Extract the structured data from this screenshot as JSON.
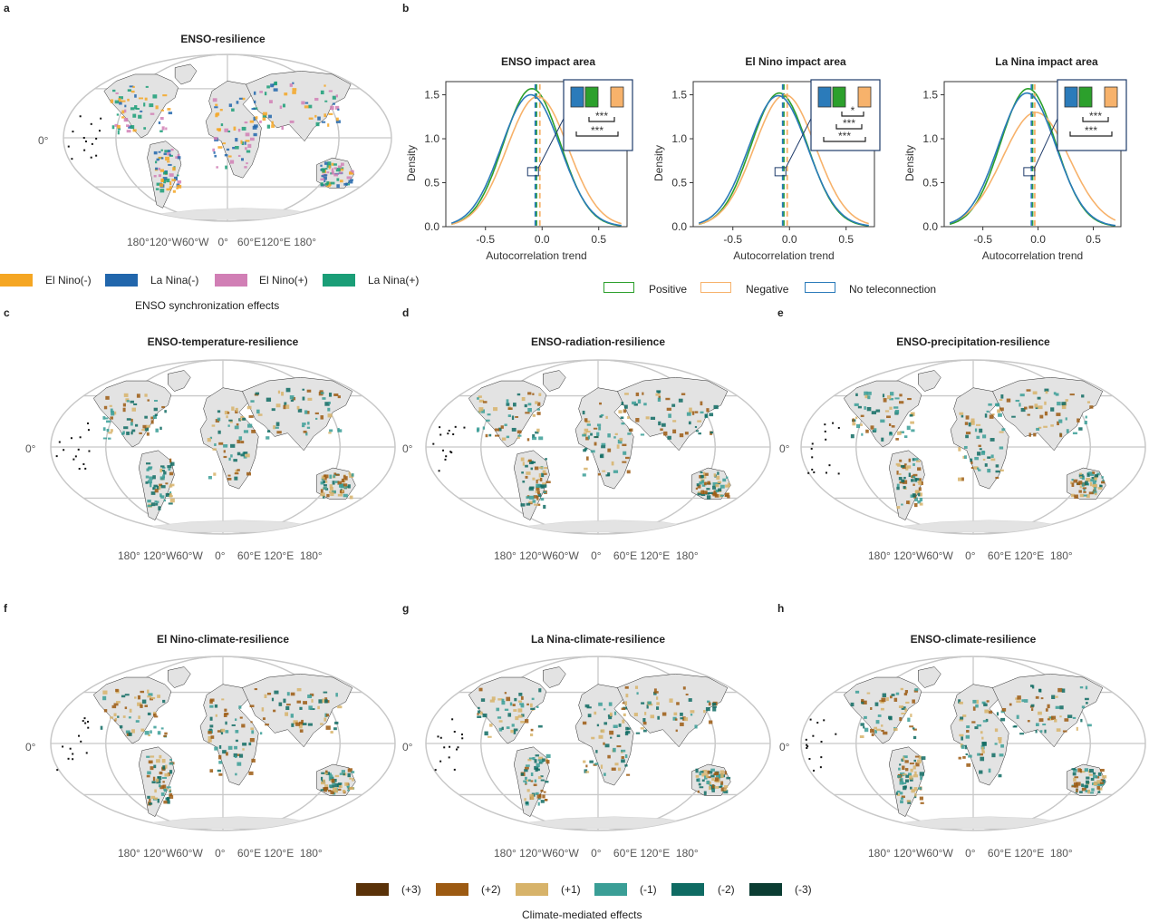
{
  "panels": {
    "a": {
      "letter": "a",
      "title": "ENSO-resilience"
    },
    "b": {
      "letter": "b"
    },
    "c": {
      "letter": "c",
      "title": "ENSO-temperature-resilience"
    },
    "d": {
      "letter": "d",
      "title": "ENSO-radiation-resilience"
    },
    "e": {
      "letter": "e",
      "title": "ENSO-precipitation-resilience"
    },
    "f": {
      "letter": "f",
      "title": "El Nino-climate-resilience"
    },
    "g": {
      "letter": "g",
      "title": "La Nina-climate-resilience"
    },
    "h": {
      "letter": "h",
      "title": "ENSO-climate-resilience"
    }
  },
  "map_axes": {
    "lat_label": "0°",
    "lon_label_a": "180°120°W60°W   0°   60°E120°E 180°",
    "lon_label": "180° 120°W60°W    0°    60°E 120°E  180°"
  },
  "sync_legend": {
    "caption": "ENSO synchronization effects",
    "items": [
      {
        "label": "El Nino(-)",
        "color": "#f5a623"
      },
      {
        "label": "La Nina(-)",
        "color": "#2166ac"
      },
      {
        "label": "El Nino(+)",
        "color": "#d17fb5"
      },
      {
        "label": "La Nina(+)",
        "color": "#1a9e77"
      }
    ]
  },
  "density_legend": {
    "items": [
      {
        "label": "Positive",
        "color": "#2ca02c"
      },
      {
        "label": "Negative",
        "color": "#f7b26b"
      },
      {
        "label": "No teleconnection",
        "color": "#2b7bba"
      }
    ]
  },
  "climate_legend": {
    "caption": "Climate-mediated effects",
    "items": [
      {
        "label": "(+3)",
        "color": "#5a3209"
      },
      {
        "label": "(+2)",
        "color": "#9c5a12"
      },
      {
        "label": "(+1)",
        "color": "#d7b36a"
      },
      {
        "label": "(-1)",
        "color": "#3a9e96"
      },
      {
        "label": "(-2)",
        "color": "#0f6b63"
      },
      {
        "label": "(-3)",
        "color": "#0b3d33"
      }
    ]
  },
  "chart_data": [
    {
      "type": "line",
      "title": "ENSO impact area",
      "xlabel": "Autocorrelation trend",
      "ylabel": "Density",
      "xlim": [
        -0.85,
        0.75
      ],
      "ylim": [
        0,
        1.65
      ],
      "xticks": [
        "-0.5",
        "0.0",
        "0.5"
      ],
      "yticks": [
        "0.0",
        "0.5",
        "1.0",
        "1.5"
      ],
      "series": [
        {
          "name": "Positive",
          "mean": -0.09,
          "peak": 1.57,
          "sd": 0.25,
          "vline": -0.05
        },
        {
          "name": "Negative",
          "mean": -0.04,
          "peak": 1.48,
          "sd": 0.27,
          "vline": -0.02
        },
        {
          "name": "No teleconnection",
          "mean": -0.1,
          "peak": 1.5,
          "sd": 0.26,
          "vline": -0.06
        }
      ],
      "inset": {
        "bars": [
          "No teleconnection",
          "Positive",
          "Negative"
        ],
        "sig1": "***",
        "sig2": "***"
      }
    },
    {
      "type": "line",
      "title": "El Nino impact area",
      "xlabel": "Autocorrelation trend",
      "ylabel": "Density",
      "xlim": [
        -0.85,
        0.75
      ],
      "ylim": [
        0,
        1.65
      ],
      "xticks": [
        "-0.5",
        "0.0",
        "0.5"
      ],
      "yticks": [
        "0.0",
        "0.5",
        "1.0",
        "1.5"
      ],
      "series": [
        {
          "name": "Positive",
          "mean": -0.09,
          "peak": 1.52,
          "sd": 0.25,
          "vline": -0.05
        },
        {
          "name": "Negative",
          "mean": -0.04,
          "peak": 1.5,
          "sd": 0.27,
          "vline": -0.02
        },
        {
          "name": "No teleconnection",
          "mean": -0.1,
          "peak": 1.49,
          "sd": 0.26,
          "vline": -0.06
        }
      ],
      "inset": {
        "bars": [
          "No teleconnection",
          "Positive",
          "Negative"
        ],
        "sig0": "*",
        "sig1": "***",
        "sig2": "***"
      }
    },
    {
      "type": "line",
      "title": "La Nina impact area",
      "xlabel": "Autocorrelation trend",
      "ylabel": "Density",
      "xlim": [
        -0.85,
        0.75
      ],
      "ylim": [
        0,
        1.65
      ],
      "xticks": [
        "-0.5",
        "0.0",
        "0.5"
      ],
      "yticks": [
        "0.0",
        "0.5",
        "1.0",
        "1.5"
      ],
      "series": [
        {
          "name": "Positive",
          "mean": -0.09,
          "peak": 1.57,
          "sd": 0.25,
          "vline": -0.05
        },
        {
          "name": "Negative",
          "mean": -0.02,
          "peak": 1.3,
          "sd": 0.3,
          "vline": -0.03
        },
        {
          "name": "No teleconnection",
          "mean": -0.1,
          "peak": 1.52,
          "sd": 0.26,
          "vline": -0.06
        }
      ],
      "inset": {
        "bars": [
          "No teleconnection",
          "Positive",
          "Negative"
        ],
        "sig1": "***",
        "sig2": "***"
      }
    }
  ]
}
